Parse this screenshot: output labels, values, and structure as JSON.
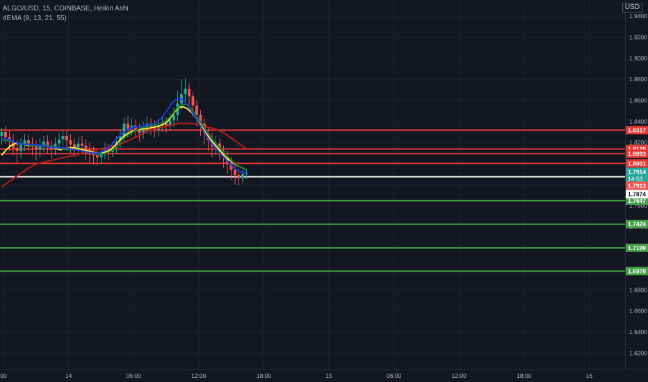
{
  "legend": {
    "symbol_line": "ALGO/USD, 15, COINBASE, Heikin Ashi",
    "indicator_line": "4EMA (8, 13, 21, 55)"
  },
  "currency_button": "USD",
  "countdown": "14:53",
  "colors": {
    "background": "#131722",
    "resistance": "#e53935",
    "support": "#43a047",
    "current": "#ffffff",
    "price_tag": "#26a69a",
    "candle_up": "#26a69a",
    "candle_down": "#ef5350",
    "ema_fast": "#1e3adf",
    "ema_mid": "#0f7a3a",
    "ema_yellow": "#ffeb3b",
    "ema_slow": "#b71c1c"
  },
  "chart_data": {
    "type": "candlestick",
    "ylim": [
      1.605,
      1.952
    ],
    "y_ticks": [
      "1.9400",
      "1.9200",
      "1.9000",
      "1.8800",
      "1.8600",
      "1.8400",
      "1.8200",
      "1.8000",
      "1.7800",
      "1.7600",
      "1.7400",
      "1.7200",
      "1.7000",
      "1.6800",
      "1.6600",
      "1.6400",
      "1.6200"
    ],
    "x_ticks": [
      {
        "label": "00",
        "t": 0
      },
      {
        "label": "14",
        "t": 24
      },
      {
        "label": "06:00",
        "t": 48
      },
      {
        "label": "12:00",
        "t": 72
      },
      {
        "label": "18:00",
        "t": 96
      },
      {
        "label": "15",
        "t": 120
      },
      {
        "label": "06:00",
        "t": 144
      },
      {
        "label": "12:00",
        "t": 168
      },
      {
        "label": "18:00",
        "t": 192
      },
      {
        "label": "16",
        "t": 216
      }
    ],
    "resistance_levels": [
      1.8317,
      1.8138,
      1.8093,
      1.8001
    ],
    "support_levels": [
      1.7647,
      1.7424,
      1.7199,
      1.6978
    ],
    "current_line": 1.7874,
    "price_labels": [
      {
        "value": "1.7914",
        "price": 1.7914,
        "kind": "last"
      },
      {
        "value": "1.7913",
        "price": 1.7913,
        "kind": "down"
      },
      {
        "value": "1.7874",
        "price": 1.7874,
        "kind": "current"
      }
    ],
    "candles": [
      [
        1.826,
        1.83,
        1.834,
        1.818
      ],
      [
        1.83,
        1.825,
        1.836,
        1.819
      ],
      [
        1.825,
        1.821,
        1.831,
        1.812
      ],
      [
        1.821,
        1.815,
        1.828,
        1.808
      ],
      [
        1.815,
        1.812,
        1.822,
        1.8
      ],
      [
        1.812,
        1.818,
        1.824,
        1.805
      ],
      [
        1.818,
        1.822,
        1.828,
        1.812
      ],
      [
        1.822,
        1.819,
        1.827,
        1.811
      ],
      [
        1.819,
        1.816,
        1.825,
        1.808
      ],
      [
        1.816,
        1.813,
        1.822,
        1.803
      ],
      [
        1.813,
        1.818,
        1.824,
        1.806
      ],
      [
        1.818,
        1.821,
        1.826,
        1.811
      ],
      [
        1.821,
        1.817,
        1.827,
        1.81
      ],
      [
        1.817,
        1.814,
        1.823,
        1.805
      ],
      [
        1.814,
        1.819,
        1.825,
        1.808
      ],
      [
        1.819,
        1.823,
        1.829,
        1.813
      ],
      [
        1.823,
        1.826,
        1.832,
        1.817
      ],
      [
        1.826,
        1.822,
        1.831,
        1.814
      ],
      [
        1.822,
        1.818,
        1.828,
        1.81
      ],
      [
        1.818,
        1.815,
        1.824,
        1.806
      ],
      [
        1.815,
        1.819,
        1.825,
        1.807
      ],
      [
        1.819,
        1.817,
        1.826,
        1.809
      ],
      [
        1.817,
        1.813,
        1.823,
        1.803
      ],
      [
        1.813,
        1.81,
        1.82,
        1.801
      ],
      [
        1.81,
        1.808,
        1.816,
        1.799
      ],
      [
        1.808,
        1.806,
        1.814,
        1.798
      ],
      [
        1.806,
        1.809,
        1.815,
        1.8
      ],
      [
        1.809,
        1.813,
        1.82,
        1.804
      ],
      [
        1.813,
        1.811,
        1.819,
        1.803
      ],
      [
        1.811,
        1.815,
        1.821,
        1.806
      ],
      [
        1.815,
        1.82,
        1.826,
        1.81
      ],
      [
        1.82,
        1.826,
        1.832,
        1.815
      ],
      [
        1.826,
        1.838,
        1.844,
        1.82
      ],
      [
        1.838,
        1.833,
        1.845,
        1.825
      ],
      [
        1.833,
        1.836,
        1.843,
        1.826
      ],
      [
        1.836,
        1.832,
        1.842,
        1.824
      ],
      [
        1.832,
        1.829,
        1.838,
        1.821
      ],
      [
        1.829,
        1.834,
        1.84,
        1.823
      ],
      [
        1.834,
        1.838,
        1.845,
        1.828
      ],
      [
        1.838,
        1.835,
        1.843,
        1.827
      ],
      [
        1.835,
        1.832,
        1.841,
        1.825
      ],
      [
        1.832,
        1.836,
        1.842,
        1.826
      ],
      [
        1.836,
        1.839,
        1.845,
        1.83
      ],
      [
        1.839,
        1.836,
        1.844,
        1.829
      ],
      [
        1.836,
        1.841,
        1.848,
        1.831
      ],
      [
        1.841,
        1.846,
        1.853,
        1.835
      ],
      [
        1.846,
        1.857,
        1.869,
        1.84
      ],
      [
        1.857,
        1.866,
        1.88,
        1.851
      ],
      [
        1.866,
        1.871,
        1.881,
        1.858
      ],
      [
        1.871,
        1.864,
        1.876,
        1.853
      ],
      [
        1.864,
        1.855,
        1.868,
        1.845
      ],
      [
        1.855,
        1.846,
        1.86,
        1.835
      ],
      [
        1.846,
        1.838,
        1.851,
        1.826
      ],
      [
        1.838,
        1.829,
        1.843,
        1.818
      ],
      [
        1.829,
        1.822,
        1.835,
        1.812
      ],
      [
        1.822,
        1.816,
        1.829,
        1.806
      ],
      [
        1.816,
        1.819,
        1.826,
        1.808
      ],
      [
        1.819,
        1.812,
        1.824,
        1.803
      ],
      [
        1.812,
        1.806,
        1.817,
        1.796
      ],
      [
        1.806,
        1.8,
        1.812,
        1.79
      ],
      [
        1.8,
        1.794,
        1.806,
        1.784
      ],
      [
        1.794,
        1.789,
        1.801,
        1.78
      ],
      [
        1.789,
        1.786,
        1.795,
        1.779
      ],
      [
        1.786,
        1.79,
        1.794,
        1.781
      ],
      [
        1.79,
        1.791,
        1.795,
        1.785
      ]
    ],
    "ema_series": [
      {
        "key": "ema_slow",
        "values": [
          1.778,
          1.781,
          1.784,
          1.787,
          1.79,
          1.793,
          1.796,
          1.798,
          1.8,
          1.801,
          1.802,
          1.803,
          1.804,
          1.805,
          1.806,
          1.807,
          1.808,
          1.809,
          1.81,
          1.811,
          1.812,
          1.813,
          1.814,
          1.815,
          1.816,
          1.817,
          1.818,
          1.82,
          1.822,
          1.824,
          1.826,
          1.828,
          1.83,
          1.832,
          1.833,
          1.834,
          1.835,
          1.836,
          1.837,
          1.838,
          1.838,
          1.838,
          1.838,
          1.837,
          1.836,
          1.835,
          1.834,
          1.833,
          1.831,
          1.829,
          1.826,
          1.823,
          1.82,
          1.817,
          1.814
        ]
      },
      {
        "key": "ema_yellow",
        "values": [
          1.808,
          1.813,
          1.817,
          1.819,
          1.819,
          1.818,
          1.817,
          1.817,
          1.817,
          1.817,
          1.816,
          1.815,
          1.814,
          1.813,
          1.814,
          1.815,
          1.815,
          1.814,
          1.813,
          1.812,
          1.811,
          1.81,
          1.81,
          1.811,
          1.813,
          1.817,
          1.822,
          1.826,
          1.829,
          1.831,
          1.832,
          1.833,
          1.833,
          1.834,
          1.835,
          1.836,
          1.838,
          1.842,
          1.848,
          1.853,
          1.854,
          1.852,
          1.848,
          1.842,
          1.836,
          1.829,
          1.823,
          1.818,
          1.813,
          1.808,
          1.804,
          1.801,
          1.798,
          1.796,
          1.794
        ]
      },
      {
        "key": "ema_mid",
        "values": [
          1.822,
          1.822,
          1.821,
          1.82,
          1.819,
          1.818,
          1.817,
          1.817,
          1.817,
          1.817,
          1.816,
          1.815,
          1.814,
          1.813,
          1.813,
          1.813,
          1.812,
          1.811,
          1.81,
          1.809,
          1.809,
          1.81,
          1.812,
          1.816,
          1.822,
          1.826,
          1.829,
          1.832,
          1.834,
          1.835,
          1.836,
          1.837,
          1.838,
          1.841,
          1.846,
          1.852,
          1.856,
          1.856,
          1.852,
          1.845,
          1.838,
          1.831,
          1.824,
          1.818,
          1.813,
          1.808,
          1.803,
          1.799,
          1.796,
          1.794
        ]
      },
      {
        "key": "ema_fast",
        "values": [
          1.824,
          1.823,
          1.821,
          1.819,
          1.818,
          1.818,
          1.818,
          1.817,
          1.816,
          1.815,
          1.815,
          1.815,
          1.814,
          1.813,
          1.812,
          1.811,
          1.81,
          1.81,
          1.812,
          1.816,
          1.822,
          1.828,
          1.832,
          1.834,
          1.835,
          1.836,
          1.837,
          1.838,
          1.843,
          1.85,
          1.858,
          1.862,
          1.86,
          1.853,
          1.844,
          1.835,
          1.826,
          1.818,
          1.812,
          1.806,
          1.8,
          1.795,
          1.792,
          1.791
        ]
      }
    ]
  }
}
